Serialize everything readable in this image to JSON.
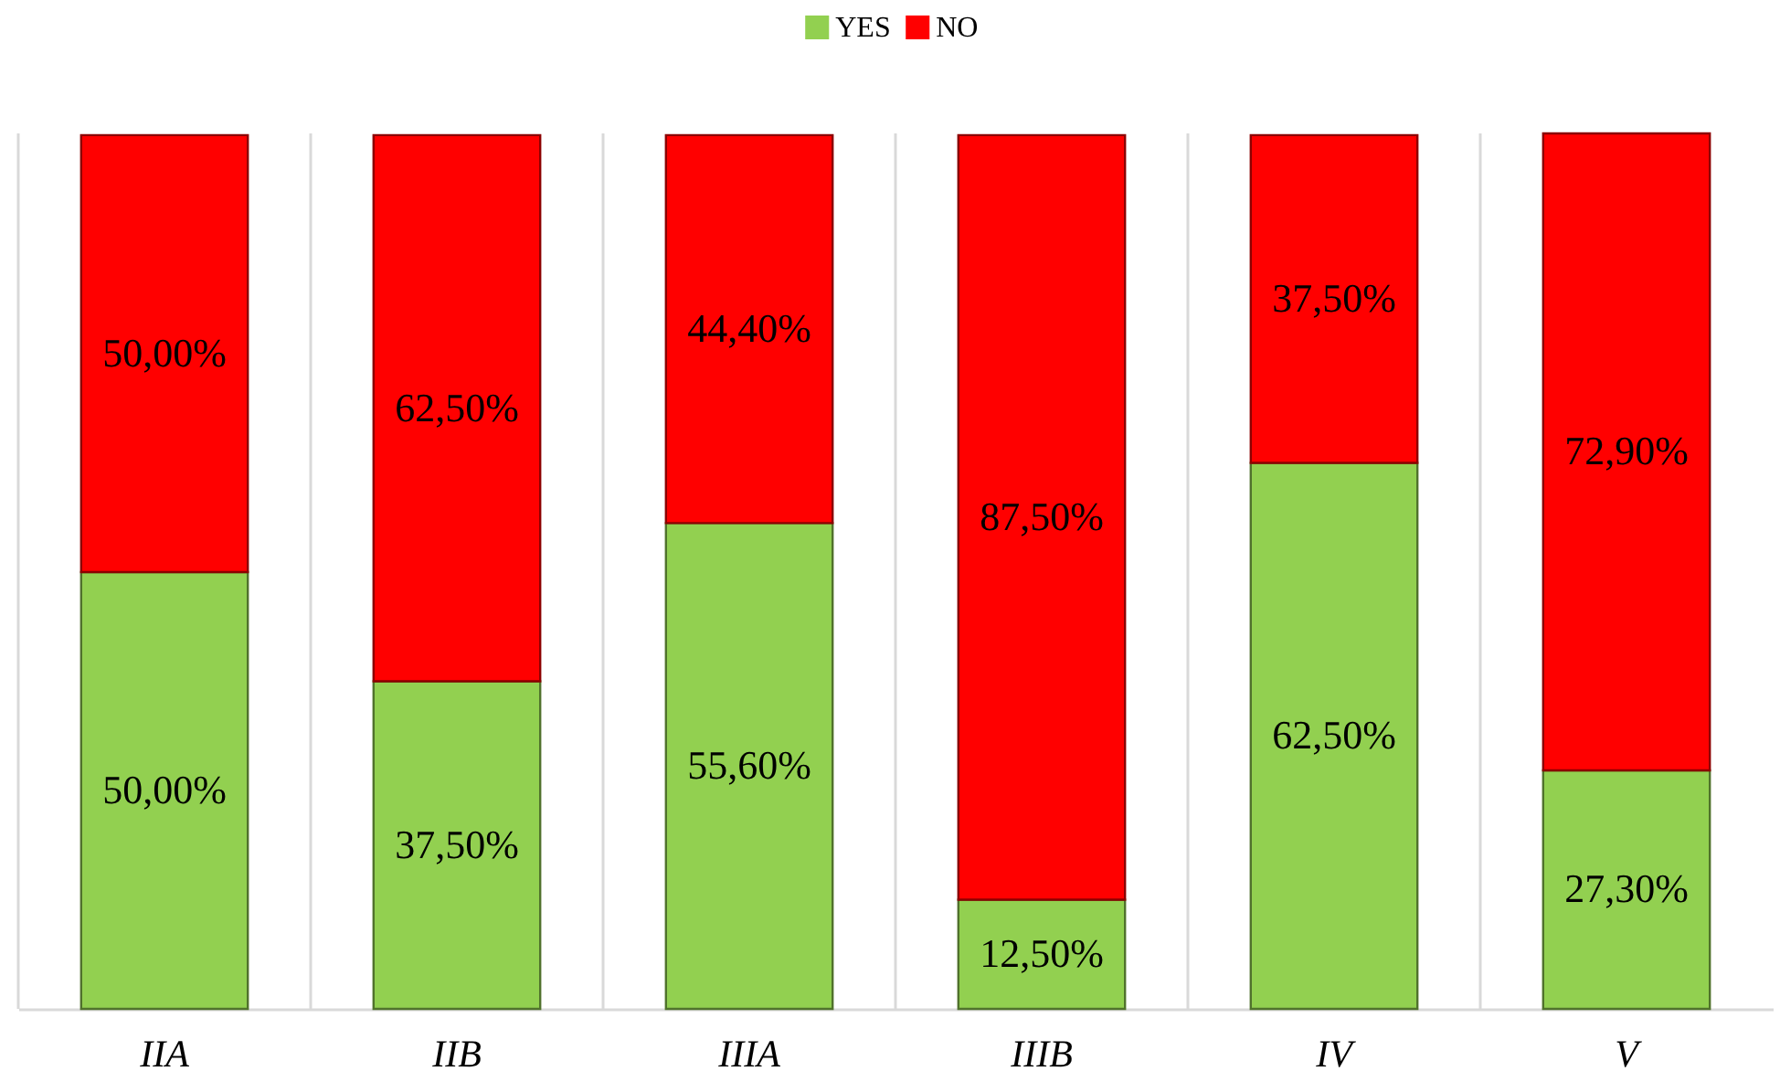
{
  "chart_data": {
    "type": "bar",
    "stacked": true,
    "categories": [
      "IIA",
      "IIB",
      "IIIA",
      "IIIB",
      "IV",
      "V"
    ],
    "series": [
      {
        "name": "YES",
        "color": "#92d050",
        "values": [
          50,
          37.5,
          55.6,
          12.5,
          62.5,
          27.3
        ],
        "value_labels": [
          "50,00%",
          "37,50%",
          "55,60%",
          "12,50%",
          "62,50%",
          "27,30%"
        ]
      },
      {
        "name": "NO",
        "color": "#ff0000",
        "values": [
          50,
          62.5,
          44.4,
          87.5,
          37.5,
          72.9
        ],
        "value_labels": [
          "50,00%",
          "62,50%",
          "44,40%",
          "87,50%",
          "37,50%",
          "72,90%"
        ]
      }
    ],
    "ylim": [
      0,
      100.2
    ],
    "tick_labels": "x",
    "grid": "x",
    "legend": "top"
  }
}
